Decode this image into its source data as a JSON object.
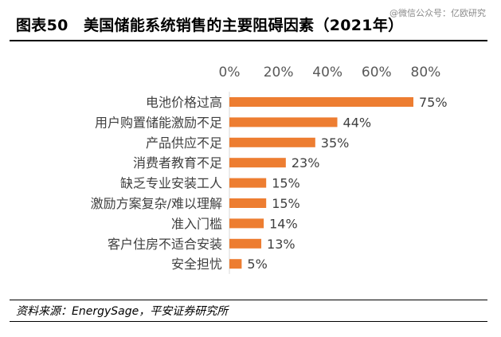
{
  "header": {
    "title": "图表50　美国储能系统销售的主要阻碍因素（2021年）",
    "watermark": "@微信公众号：亿欧研究"
  },
  "chart_data": {
    "type": "bar",
    "orientation": "horizontal",
    "title": "图表50　美国储能系统销售的主要阻碍因素（2021年）",
    "xlabel": "",
    "ylabel": "",
    "xlim": [
      0,
      80
    ],
    "x_ticks": [
      "0%",
      "20%",
      "40%",
      "60%",
      "80%"
    ],
    "x_tick_values": [
      0,
      20,
      40,
      60,
      80
    ],
    "x_axis_position": "top",
    "grid": false,
    "legend": "none",
    "bar_color": "#ED7D31",
    "categories": [
      "电池价格过高",
      "用户购置储能激励不足",
      "产品供应不足",
      "消费者教育不足",
      "缺乏专业安装工人",
      "激励方案复杂/难以理解",
      "准入门槛",
      "客户住房不适合安装",
      "安全担忧"
    ],
    "values": [
      75,
      44,
      35,
      23,
      15,
      15,
      14,
      13,
      5
    ],
    "value_labels": [
      "75%",
      "44%",
      "35%",
      "23%",
      "15%",
      "15%",
      "14%",
      "13%",
      "5%"
    ]
  },
  "footer": {
    "source": "资料来源：EnergySage，平安证券研究所"
  }
}
